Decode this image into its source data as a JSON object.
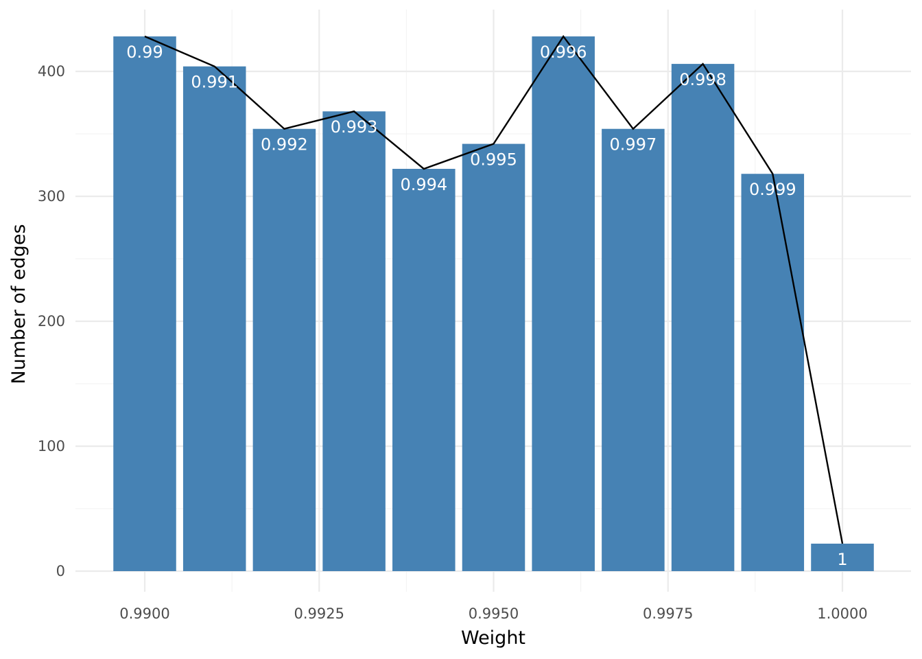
{
  "chart_data": {
    "type": "bar",
    "title": "",
    "xlabel": "Weight",
    "ylabel": "Number of edges",
    "x": [
      0.99,
      0.991,
      0.992,
      0.993,
      0.994,
      0.995,
      0.996,
      0.997,
      0.998,
      0.999,
      1.0
    ],
    "values": [
      428,
      404,
      354,
      368,
      322,
      342,
      428,
      354,
      406,
      318,
      22
    ],
    "bar_labels": [
      "0.99",
      "0.991",
      "0.992",
      "0.993",
      "0.994",
      "0.995",
      "0.996",
      "0.997",
      "0.998",
      "0.999",
      "1"
    ],
    "line_overlay": true,
    "xlim": [
      0.9895,
      1.0005
    ],
    "ylim": [
      0,
      428
    ],
    "x_ticks": [
      0.99,
      0.9925,
      0.995,
      0.9975,
      1.0
    ],
    "x_tick_labels": [
      "0.9900",
      "0.9925",
      "0.9950",
      "0.9975",
      "1.0000"
    ],
    "y_ticks": [
      0,
      100,
      200,
      300,
      400
    ],
    "y_tick_labels": [
      "0",
      "100",
      "200",
      "300",
      "400"
    ],
    "grid": true,
    "bar_color": "#4682B4",
    "line_color": "#000000"
  }
}
